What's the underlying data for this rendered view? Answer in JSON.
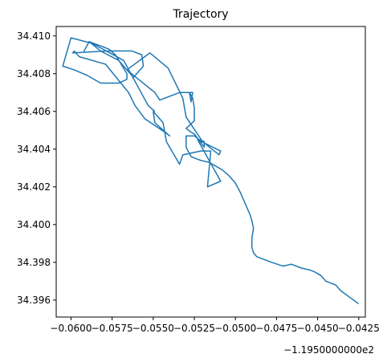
{
  "chart_data": {
    "type": "line",
    "title": "Trajectory",
    "xlabel": "",
    "ylabel": "",
    "x_offset_label": "−1.1950000000e2",
    "xlim": [
      -0.0609,
      -0.0421
    ],
    "ylim": [
      34.3951,
      34.4105
    ],
    "grid": false,
    "x_ticks": [
      -0.06,
      -0.0575,
      -0.055,
      -0.0525,
      -0.05,
      -0.0475,
      -0.045,
      -0.0425
    ],
    "x_tick_labels": [
      "−0.0600",
      "−0.0575",
      "−0.0550",
      "−0.0525",
      "−0.0500",
      "−0.0475",
      "−0.0450",
      "−0.0425"
    ],
    "y_ticks": [
      34.396,
      34.398,
      34.4,
      34.402,
      34.404,
      34.406,
      34.408,
      34.41
    ],
    "y_tick_labels": [
      "34.396",
      "34.398",
      "34.400",
      "34.402",
      "34.404",
      "34.406",
      "34.408",
      "34.410"
    ],
    "line_color": "#1f77b4",
    "series": [
      {
        "x": [
          -0.0425,
          -0.0436,
          -0.0439,
          -0.0445,
          -0.0448,
          -0.0452,
          -0.0455,
          -0.046,
          -0.0466,
          -0.0471,
          -0.0478,
          -0.0487,
          -0.0489,
          -0.049,
          -0.049,
          -0.0489,
          -0.049,
          -0.0491,
          -0.0494,
          -0.0497,
          -0.05,
          -0.0504,
          -0.0508,
          -0.0512,
          -0.0516,
          -0.0521,
          -0.0527,
          -0.053,
          -0.053,
          -0.0525,
          -0.0522,
          -0.0519,
          -0.0519,
          -0.0525,
          -0.0527,
          -0.053,
          -0.0525,
          -0.0525,
          -0.0526,
          -0.0528,
          -0.0527,
          -0.0526,
          -0.0534,
          -0.0546,
          -0.0549,
          -0.0559,
          -0.0566,
          -0.0552,
          -0.0541,
          -0.0532,
          -0.053,
          -0.052,
          -0.051,
          -0.0509,
          -0.0523,
          -0.0509,
          -0.0517,
          -0.0515,
          -0.0521,
          -0.0532,
          -0.0534,
          -0.0542,
          -0.0544,
          -0.055,
          -0.0549,
          -0.054,
          -0.0543,
          -0.0555,
          -0.0561,
          -0.0565,
          -0.0579,
          -0.0595,
          -0.0598,
          -0.0599,
          -0.0578,
          -0.057,
          -0.0563,
          -0.0557,
          -0.0556,
          -0.0562,
          -0.0571,
          -0.0582,
          -0.0589,
          -0.0592,
          -0.0589,
          -0.0577,
          -0.0573,
          -0.0566,
          -0.0566,
          -0.0571,
          -0.0582,
          -0.059,
          -0.0598,
          -0.0605,
          -0.06,
          -0.0587,
          -0.0568,
          -0.0553,
          -0.0549
        ],
        "y": [
          34.3958,
          34.3965,
          34.3968,
          34.397,
          34.3973,
          34.3975,
          34.3976,
          34.3977,
          34.3979,
          34.3978,
          34.398,
          34.3983,
          34.3985,
          34.3988,
          34.3993,
          34.3998,
          34.4002,
          34.4005,
          34.4011,
          34.4017,
          34.4022,
          34.4026,
          34.4029,
          34.4031,
          34.4033,
          34.4034,
          34.4036,
          34.4041,
          34.4047,
          34.4047,
          34.4045,
          34.4044,
          34.4041,
          34.4048,
          34.4049,
          34.4051,
          34.4055,
          34.4062,
          34.4067,
          34.407,
          34.4065,
          34.407,
          34.407,
          34.4066,
          34.407,
          34.4077,
          34.4082,
          34.4091,
          34.4083,
          34.4067,
          34.4057,
          34.4044,
          34.4037,
          34.4039,
          34.4045,
          34.4023,
          34.402,
          34.4039,
          34.4039,
          34.4037,
          34.4032,
          34.4044,
          34.4054,
          34.406,
          34.4054,
          34.4047,
          34.4049,
          34.4056,
          34.4063,
          34.407,
          34.4085,
          34.4089,
          34.4092,
          34.4091,
          34.4092,
          34.4092,
          34.4092,
          34.409,
          34.4084,
          34.4078,
          34.4087,
          34.4092,
          34.4097,
          34.4092,
          34.4097,
          34.4093,
          34.409,
          34.408,
          34.4077,
          34.4075,
          34.4075,
          34.4079,
          34.4082,
          34.4084,
          34.4099,
          34.4096,
          34.4087,
          34.4063,
          34.406
        ]
      }
    ]
  }
}
